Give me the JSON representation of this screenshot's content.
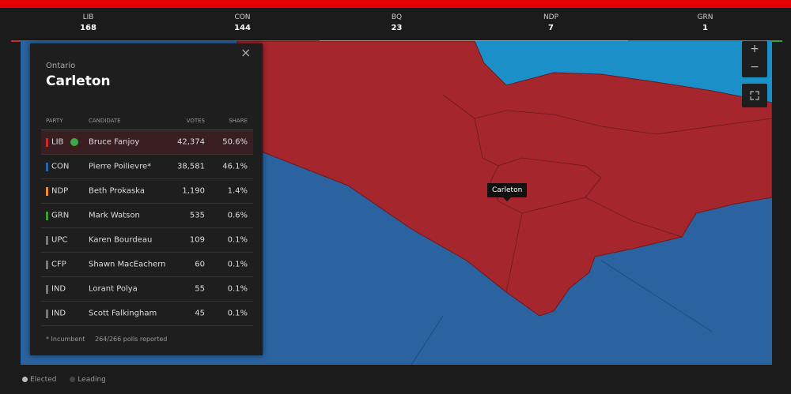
{
  "header": {
    "parties": [
      {
        "name": "LIB",
        "seats": 168
      },
      {
        "name": "CON",
        "seats": 144
      },
      {
        "name": "BQ",
        "seats": 23
      },
      {
        "name": "NDP",
        "seats": 7
      },
      {
        "name": "GRN",
        "seats": 1
      }
    ]
  },
  "panel": {
    "province": "Ontario",
    "riding": "Carleton",
    "columns": [
      "PARTY",
      "CANDIDATE",
      "VOTES",
      "SHARE"
    ],
    "rows": [
      {
        "party": "LIB",
        "candidate": "Bruce Fanjoy",
        "votes": "42,374",
        "share": "50.6%"
      },
      {
        "party": "CON",
        "candidate": "Pierre Poilievre*",
        "votes": "38,581",
        "share": "46.1%"
      },
      {
        "party": "NDP",
        "candidate": "Beth Prokaska",
        "votes": "1,190",
        "share": "1.4%"
      },
      {
        "party": "GRN",
        "candidate": "Mark Watson",
        "votes": "535",
        "share": "0.6%"
      },
      {
        "party": "UPC",
        "candidate": "Karen Bourdeau",
        "votes": "109",
        "share": "0.1%"
      },
      {
        "party": "CFP",
        "candidate": "Shawn MacEachern",
        "votes": "60",
        "share": "0.1%"
      },
      {
        "party": "IND",
        "candidate": "Lorant Polya",
        "votes": "55",
        "share": "0.1%"
      },
      {
        "party": "IND",
        "candidate": "Scott Falkingham",
        "votes": "45",
        "share": "0.1%"
      }
    ],
    "note": "* Incumbent",
    "polls": "264/266 polls reported"
  },
  "map": {
    "tooltip": "Carleton"
  },
  "legend": [
    "Elected",
    "Leading"
  ]
}
